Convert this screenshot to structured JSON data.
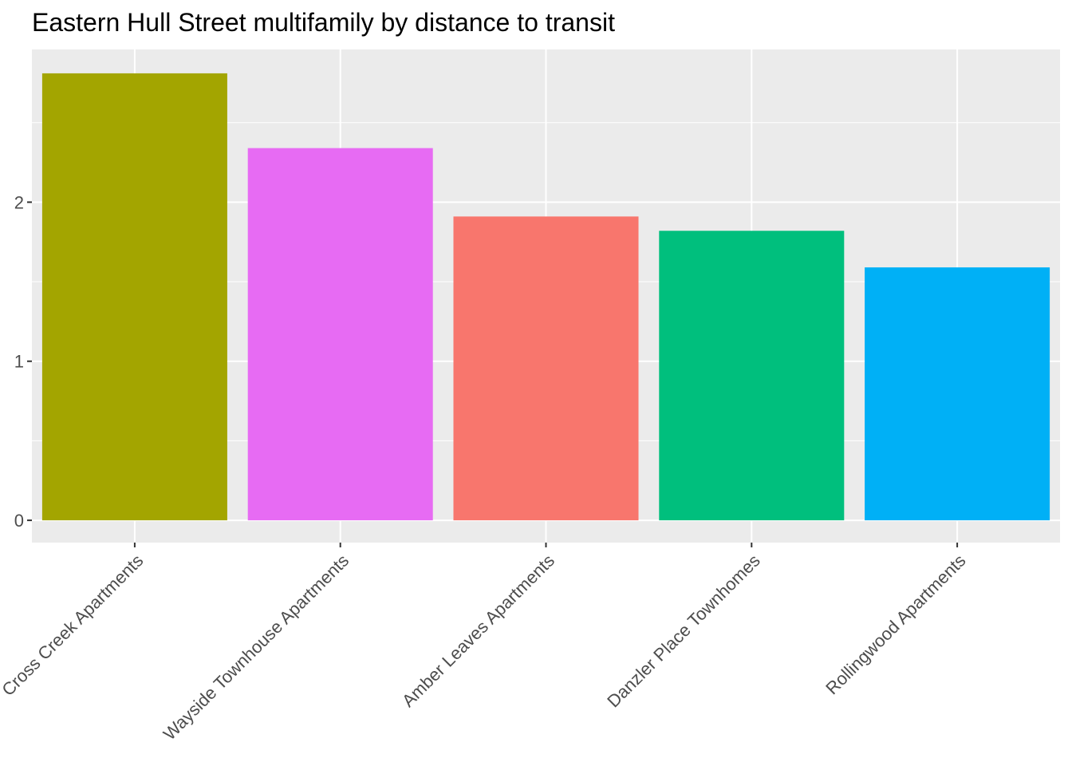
{
  "chart_data": {
    "type": "bar",
    "title": "Eastern Hull Street multifamily by distance to transit",
    "xlabel": "",
    "ylabel": "",
    "categories": [
      "Cross Creek Apartments",
      "Wayside Townhouse Apartments",
      "Amber Leaves Apartments",
      "Danzler Place Townhomes",
      "Rollingwood Apartments"
    ],
    "values": [
      2.81,
      2.34,
      1.91,
      1.82,
      1.59
    ],
    "colors": [
      "#A3A500",
      "#E76BF3",
      "#F8766D",
      "#00BF7D",
      "#00B0F6"
    ],
    "ylim": [
      -0.14,
      2.96
    ],
    "yticks": [
      0,
      1,
      2
    ],
    "grid": true,
    "legend": "none",
    "panel_background": "#EBEBEB",
    "grid_color": "#FFFFFF"
  }
}
